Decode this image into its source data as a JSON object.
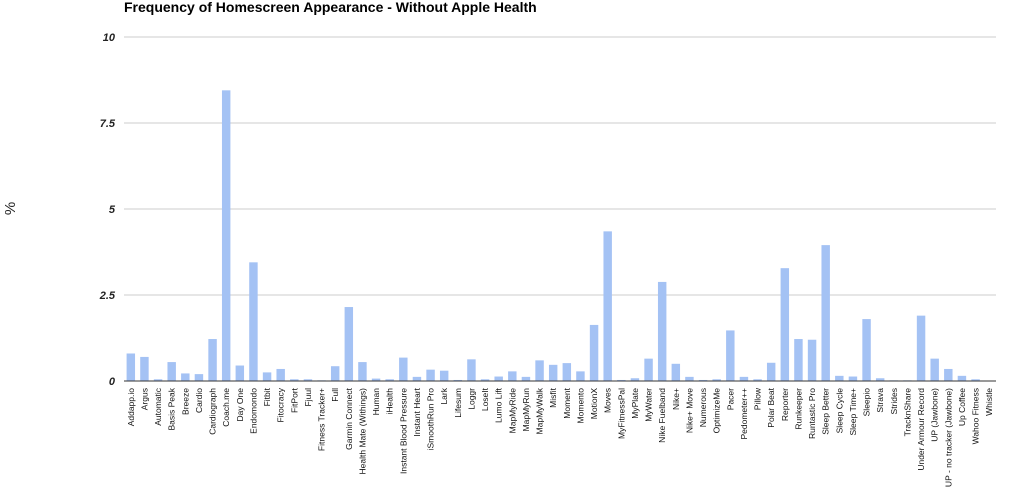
{
  "chart_data": {
    "type": "bar",
    "title": "Frequency of Homescreen Appearance - Without Apple Health",
    "xlabel": "",
    "ylabel": "%",
    "ylim": [
      0,
      10
    ],
    "yticks": [
      "0",
      "2.5",
      "5",
      "7.5",
      "10"
    ],
    "grid": true,
    "legend": "none",
    "bar_color": "#a4c2f4",
    "categories": [
      "Addapp.io",
      "Argus",
      "Automatic",
      "Basis Peak",
      "Breeze",
      "Cardio",
      "Cardiograph",
      "Coach.me",
      "Day One",
      "Endomondo",
      "Fitbit",
      "Fitocracy",
      "FitPort",
      "Fjuul",
      "Fitness Tracker+",
      "Full",
      "Garmin Connect",
      "Health Mate (Withings)",
      "Human",
      "iHealth",
      "Instant Blood Pressure",
      "Instant Heart",
      "iSmoothRun Pro",
      "Lark",
      "Lifesum",
      "Loggr",
      "LoseIt",
      "Lumo Lift",
      "MapMyRide",
      "MapMyRun",
      "MapMyWalk",
      "Misfit",
      "Moment",
      "Momento",
      "MotionX",
      "Moves",
      "MyFitnessPal",
      "MyPlate",
      "MyWater",
      "Nike Fuelband",
      "Nike+",
      "Nike+ Move",
      "Numerous",
      "OptimizeMe",
      "Pacer",
      "Pedometer++",
      "Pillow",
      "Polar Beat",
      "Reporter",
      "Runkeeper",
      "Runtastic Pro",
      "Sleep Better",
      "Sleep Cycle",
      "Sleep Time+",
      "Sleepio",
      "Strava",
      "Strides",
      "TracknShare",
      "Under Armour Record",
      "UP (Jawbone)",
      "UP - no tracker (Jawbone)",
      "Up Coffee",
      "Wahoo Fitness",
      "Whistle"
    ],
    "values": [
      0.8,
      0.7,
      0.05,
      0.55,
      0.22,
      0.2,
      1.22,
      8.45,
      0.45,
      3.45,
      0.25,
      0.35,
      0.05,
      0.05,
      0.02,
      0.43,
      2.15,
      0.55,
      0.07,
      0.05,
      0.68,
      0.12,
      0.33,
      0.3,
      0.03,
      0.63,
      0.05,
      0.13,
      0.28,
      0.12,
      0.6,
      0.47,
      0.52,
      0.28,
      1.63,
      4.35,
      0.03,
      0.08,
      0.65,
      2.88,
      0.5,
      0.12,
      0.03,
      0.05,
      1.47,
      0.12,
      0.05,
      0.53,
      3.28,
      1.22,
      1.2,
      3.95,
      0.15,
      0.13,
      1.8,
      0.08,
      0.02,
      0.02,
      1.9,
      0.65,
      0.35,
      0.15,
      0.05,
      0.0
    ]
  }
}
